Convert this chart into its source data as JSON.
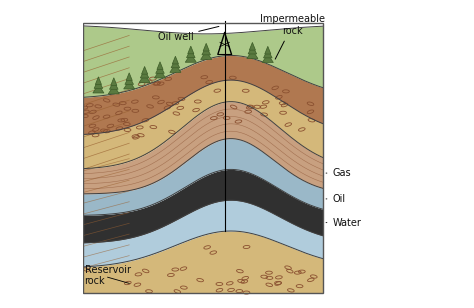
{
  "labels": {
    "oil_well": "Oil well",
    "impermeable_rock": "Impermeable\nrock",
    "gas": "Gas",
    "oil": "Oil",
    "water": "Water",
    "reservoir_rock": "Reservoir\nrock"
  },
  "colors": {
    "background": "#ffffff",
    "surface_green": "#adc98a",
    "trees_green": "#5a7a40",
    "trees_dark": "#3d5c28",
    "sand_tan": "#d4b87a",
    "sand_tan_light": "#e0c888",
    "brown_rock": "#b07850",
    "brown_rock2": "#c89060",
    "brown_rock_dark": "#8a5030",
    "pinkish_brown": "#c8a080",
    "gas_gray": "#9ab8c8",
    "gas_gray2": "#8aaab8",
    "oil_black": "#303030",
    "oil_dark": "#1a1a1a",
    "water_blue": "#b0ccdc",
    "water_blue2": "#98b8cc",
    "outline": "#404040",
    "outline_light": "#666666",
    "text_color": "#111111",
    "left_brown1": "#a06840",
    "left_brown2": "#c09060",
    "left_stripe1": "#b07848",
    "left_stripe2": "#986030"
  },
  "figsize": [
    4.74,
    3.08
  ],
  "dpi": 100
}
